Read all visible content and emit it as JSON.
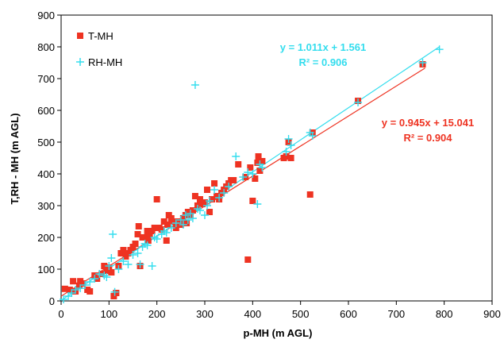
{
  "chart_data": {
    "type": "scatter",
    "xlabel": "p-MH (m AGL)",
    "ylabel": "T,RH - MH (m AGL)",
    "xlim": [
      0,
      900
    ],
    "ylim": [
      0,
      900
    ],
    "x_ticks": [
      "0",
      "100",
      "200",
      "300",
      "400",
      "500",
      "600",
      "700",
      "800",
      "900"
    ],
    "y_ticks": [
      "0",
      "100",
      "200",
      "300",
      "400",
      "500",
      "600",
      "700",
      "800",
      "900"
    ],
    "grid": false,
    "legend_position": "top-left",
    "series": [
      {
        "name": "T-MH",
        "marker": "square",
        "color": "#ee3322",
        "trend": {
          "slope": 0.945,
          "intercept": 15.041,
          "x_range": [
            0,
            760
          ]
        },
        "equation": "y = 0.945x + 15.041",
        "r2_text": "R² = 0.904",
        "points": [
          [
            8,
            38
          ],
          [
            18,
            35
          ],
          [
            25,
            62
          ],
          [
            30,
            30
          ],
          [
            38,
            48
          ],
          [
            40,
            62
          ],
          [
            45,
            55
          ],
          [
            55,
            35
          ],
          [
            60,
            30
          ],
          [
            70,
            80
          ],
          [
            75,
            70
          ],
          [
            85,
            85
          ],
          [
            90,
            110
          ],
          [
            95,
            95
          ],
          [
            100,
            105
          ],
          [
            105,
            90
          ],
          [
            110,
            15
          ],
          [
            115,
            25
          ],
          [
            120,
            110
          ],
          [
            125,
            150
          ],
          [
            130,
            160
          ],
          [
            135,
            140
          ],
          [
            140,
            150
          ],
          [
            145,
            160
          ],
          [
            150,
            170
          ],
          [
            155,
            180
          ],
          [
            160,
            210
          ],
          [
            162,
            235
          ],
          [
            165,
            110
          ],
          [
            170,
            200
          ],
          [
            175,
            200
          ],
          [
            180,
            220
          ],
          [
            182,
            190
          ],
          [
            185,
            210
          ],
          [
            190,
            220
          ],
          [
            195,
            230
          ],
          [
            200,
            320
          ],
          [
            205,
            230
          ],
          [
            210,
            225
          ],
          [
            215,
            250
          ],
          [
            220,
            190
          ],
          [
            222,
            240
          ],
          [
            225,
            270
          ],
          [
            230,
            260
          ],
          [
            235,
            250
          ],
          [
            240,
            230
          ],
          [
            245,
            250
          ],
          [
            250,
            240
          ],
          [
            255,
            260
          ],
          [
            260,
            270
          ],
          [
            262,
            245
          ],
          [
            265,
            280
          ],
          [
            270,
            270
          ],
          [
            275,
            285
          ],
          [
            280,
            330
          ],
          [
            285,
            300
          ],
          [
            290,
            320
          ],
          [
            295,
            305
          ],
          [
            300,
            310
          ],
          [
            305,
            350
          ],
          [
            310,
            280
          ],
          [
            315,
            320
          ],
          [
            320,
            370
          ],
          [
            325,
            330
          ],
          [
            330,
            320
          ],
          [
            335,
            340
          ],
          [
            340,
            350
          ],
          [
            345,
            360
          ],
          [
            350,
            370
          ],
          [
            355,
            380
          ],
          [
            360,
            380
          ],
          [
            370,
            430
          ],
          [
            385,
            390
          ],
          [
            390,
            130
          ],
          [
            395,
            420
          ],
          [
            400,
            315
          ],
          [
            405,
            385
          ],
          [
            410,
            435
          ],
          [
            412,
            455
          ],
          [
            415,
            410
          ],
          [
            420,
            440
          ],
          [
            465,
            450
          ],
          [
            470,
            455
          ],
          [
            475,
            500
          ],
          [
            480,
            450
          ],
          [
            520,
            335
          ],
          [
            525,
            530
          ],
          [
            620,
            630
          ],
          [
            755,
            745
          ]
        ]
      },
      {
        "name": "RH-MH",
        "marker": "plus",
        "color": "#33ddee",
        "trend": {
          "slope": 1.011,
          "intercept": 1.561,
          "x_range": [
            0,
            790
          ]
        },
        "equation": "y = 1.011x + 1.561",
        "r2_text": "R² = 0.906",
        "points": [
          [
            5,
            5
          ],
          [
            15,
            15
          ],
          [
            22,
            25
          ],
          [
            30,
            35
          ],
          [
            40,
            40
          ],
          [
            50,
            50
          ],
          [
            60,
            60
          ],
          [
            70,
            70
          ],
          [
            80,
            85
          ],
          [
            90,
            80
          ],
          [
            95,
            75
          ],
          [
            100,
            110
          ],
          [
            105,
            135
          ],
          [
            108,
            210
          ],
          [
            112,
            28
          ],
          [
            120,
            100
          ],
          [
            130,
            125
          ],
          [
            140,
            115
          ],
          [
            150,
            145
          ],
          [
            160,
            150
          ],
          [
            165,
            115
          ],
          [
            170,
            170
          ],
          [
            175,
            180
          ],
          [
            180,
            175
          ],
          [
            190,
            110
          ],
          [
            195,
            200
          ],
          [
            200,
            195
          ],
          [
            210,
            210
          ],
          [
            215,
            220
          ],
          [
            220,
            215
          ],
          [
            230,
            230
          ],
          [
            240,
            245
          ],
          [
            250,
            255
          ],
          [
            255,
            240
          ],
          [
            260,
            270
          ],
          [
            265,
            255
          ],
          [
            270,
            275
          ],
          [
            275,
            260
          ],
          [
            280,
            680
          ],
          [
            285,
            290
          ],
          [
            290,
            285
          ],
          [
            300,
            270
          ],
          [
            305,
            300
          ],
          [
            310,
            315
          ],
          [
            320,
            350
          ],
          [
            330,
            325
          ],
          [
            340,
            340
          ],
          [
            350,
            360
          ],
          [
            365,
            455
          ],
          [
            380,
            390
          ],
          [
            390,
            405
          ],
          [
            400,
            400
          ],
          [
            410,
            305
          ],
          [
            415,
            430
          ],
          [
            420,
            420
          ],
          [
            470,
            470
          ],
          [
            475,
            510
          ],
          [
            480,
            490
          ],
          [
            520,
            530
          ],
          [
            525,
            520
          ],
          [
            620,
            625
          ],
          [
            755,
            750
          ],
          [
            790,
            792
          ]
        ]
      }
    ]
  }
}
